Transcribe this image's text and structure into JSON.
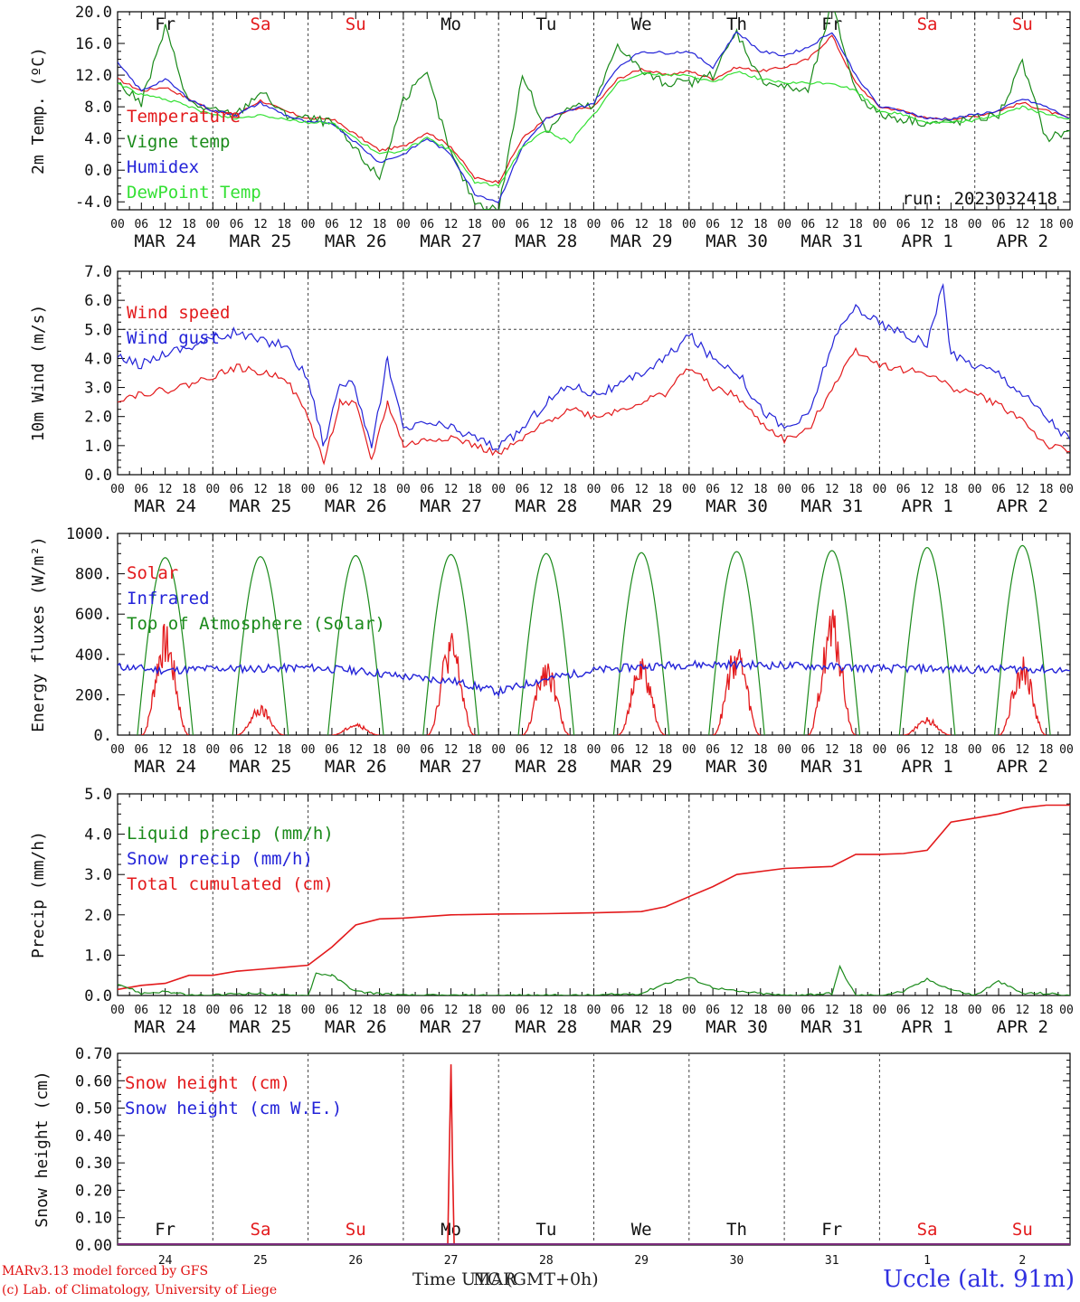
{
  "colors": {
    "red": "#e31a1c",
    "green": "#1a8a1a",
    "blue": "#2323d8",
    "lightgreen": "#33e033",
    "weekend": "#e31a1c",
    "weekday": "#111111"
  },
  "days": [
    "MAR 24",
    "MAR 25",
    "MAR 26",
    "MAR 27",
    "MAR 28",
    "MAR 29",
    "MAR 30",
    "MAR 31",
    "APR  1",
    "APR  2"
  ],
  "day_numbers": [
    "24",
    "25",
    "26",
    "27",
    "28",
    "29",
    "30",
    "31",
    "1",
    "2"
  ],
  "weekdays": [
    {
      "label": "Fr",
      "weekend": false
    },
    {
      "label": "Sa",
      "weekend": true
    },
    {
      "label": "Su",
      "weekend": true
    },
    {
      "label": "Mo",
      "weekend": false
    },
    {
      "label": "Tu",
      "weekend": false
    },
    {
      "label": "We",
      "weekend": false
    },
    {
      "label": "Th",
      "weekend": false
    },
    {
      "label": "Fr",
      "weekend": false
    },
    {
      "label": "Sa",
      "weekend": true
    },
    {
      "label": "Su",
      "weekend": true
    }
  ],
  "hour_ticks": [
    "00",
    "06",
    "12",
    "18"
  ],
  "hour_tick_end": "00",
  "footer": {
    "credit_line1": "MARv3.13 model forced by GFS",
    "credit_line2": "(c) Lab. of Climatology, University of Liege",
    "x_title": "Time UTC (GMT+0h)",
    "overlap_text": "MAR",
    "station": "Uccle (alt. 91m)"
  },
  "chart_data": [
    {
      "type": "line",
      "ylabel": "2m Temp. (ºC)",
      "ylim": [
        -5.0,
        20.0
      ],
      "yticks": [
        "-4.0",
        "0.0",
        "4.0",
        "8.0",
        "12.0",
        "16.0",
        "20.0"
      ],
      "ytick_values": [
        -4,
        0,
        4,
        8,
        12,
        16,
        20
      ],
      "annotation": "run: 2023032418",
      "legend": [
        "Temperature",
        "Vigne temp",
        "Humidex",
        "DewPoint Temp"
      ],
      "x_unit": "hours since MAR 24 00 UTC",
      "series": [
        {
          "name": "Temperature",
          "color": "red",
          "x": [
            0,
            6,
            12,
            18,
            24,
            30,
            36,
            42,
            48,
            54,
            60,
            66,
            72,
            78,
            84,
            90,
            96,
            102,
            108,
            114,
            120,
            126,
            132,
            138,
            144,
            150,
            156,
            162,
            168,
            174,
            180,
            186,
            192,
            198,
            204,
            210,
            216,
            222,
            228,
            234,
            240
          ],
          "y": [
            11.5,
            10.0,
            10.5,
            9.0,
            7.5,
            7.0,
            8.8,
            7.5,
            6.5,
            6.5,
            4.5,
            2.5,
            3.0,
            4.8,
            3.0,
            -1.0,
            -1.5,
            4.0,
            6.5,
            7.5,
            8.0,
            11.5,
            12.8,
            12.0,
            12.5,
            11.5,
            13.0,
            12.5,
            13.0,
            14.0,
            17.0,
            11.0,
            8.0,
            7.5,
            6.5,
            6.5,
            6.8,
            7.5,
            8.5,
            7.5,
            6.5
          ]
        },
        {
          "name": "Vigne temp",
          "color": "green",
          "x": [
            0,
            6,
            12,
            18,
            24,
            30,
            36,
            42,
            48,
            54,
            60,
            66,
            72,
            78,
            84,
            90,
            96,
            102,
            108,
            114,
            120,
            126,
            132,
            138,
            144,
            150,
            156,
            162,
            168,
            174,
            180,
            186,
            192,
            198,
            204,
            210,
            216,
            222,
            228,
            234,
            240
          ],
          "y": [
            11.0,
            8.5,
            18.0,
            8.5,
            7.5,
            7.0,
            10.0,
            7.0,
            6.5,
            6.0,
            2.5,
            -1.0,
            9.0,
            12.0,
            2.0,
            -4.0,
            -5.0,
            12.0,
            5.0,
            8.0,
            8.0,
            16.0,
            12.5,
            11.0,
            11.0,
            12.0,
            17.5,
            11.5,
            10.5,
            10.0,
            21.0,
            10.0,
            7.0,
            6.5,
            6.0,
            6.0,
            6.5,
            7.0,
            13.5,
            4.0,
            5.0
          ]
        },
        {
          "name": "Humidex",
          "color": "blue",
          "x": [
            0,
            6,
            12,
            18,
            24,
            30,
            36,
            42,
            48,
            54,
            60,
            66,
            72,
            78,
            84,
            90,
            96,
            102,
            108,
            114,
            120,
            126,
            132,
            138,
            144,
            150,
            156,
            162,
            168,
            174,
            180,
            186,
            192,
            198,
            204,
            210,
            216,
            222,
            228,
            234,
            240
          ],
          "y": [
            13.5,
            10.0,
            11.5,
            9.0,
            7.5,
            7.0,
            8.5,
            7.0,
            6.0,
            6.0,
            3.5,
            1.0,
            2.0,
            4.0,
            2.0,
            -3.0,
            -4.0,
            3.0,
            6.5,
            7.5,
            8.5,
            13.0,
            15.0,
            14.8,
            15.0,
            13.0,
            17.5,
            15.0,
            14.5,
            15.5,
            17.5,
            12.0,
            8.0,
            7.5,
            6.5,
            6.5,
            7.0,
            7.5,
            9.0,
            8.0,
            6.5
          ]
        },
        {
          "name": "DewPoint Temp",
          "color": "lightgreen",
          "x": [
            0,
            6,
            12,
            18,
            24,
            30,
            36,
            42,
            48,
            54,
            60,
            66,
            72,
            78,
            84,
            90,
            96,
            102,
            108,
            114,
            120,
            126,
            132,
            138,
            144,
            150,
            156,
            162,
            168,
            174,
            180,
            186,
            192,
            198,
            204,
            210,
            216,
            222,
            228,
            234,
            240
          ],
          "y": [
            11.0,
            9.5,
            9.0,
            8.0,
            7.0,
            6.5,
            7.0,
            6.5,
            6.0,
            6.0,
            4.0,
            2.0,
            2.5,
            4.0,
            2.5,
            -1.5,
            -2.0,
            3.0,
            5.0,
            3.5,
            7.0,
            11.0,
            12.3,
            12.0,
            12.0,
            11.0,
            12.5,
            11.5,
            11.0,
            11.0,
            11.0,
            10.0,
            7.5,
            7.0,
            6.0,
            6.0,
            6.3,
            7.0,
            8.0,
            7.0,
            6.5
          ]
        }
      ]
    },
    {
      "type": "line",
      "ylabel": "10m Wind (m/s)",
      "ylim": [
        0.0,
        7.0
      ],
      "yticks": [
        "0.0",
        "1.0",
        "2.0",
        "3.0",
        "4.0",
        "5.0",
        "6.0",
        "7.0"
      ],
      "ytick_values": [
        0,
        1,
        2,
        3,
        4,
        5,
        6,
        7
      ],
      "ref_line": 5.0,
      "legend": [
        "Wind speed",
        "Wind gust"
      ],
      "x_unit": "hours since MAR 24 00 UTC",
      "series": [
        {
          "name": "Wind speed",
          "color": "red",
          "x": [
            0,
            6,
            12,
            18,
            24,
            30,
            36,
            42,
            48,
            52,
            56,
            60,
            64,
            68,
            72,
            78,
            84,
            90,
            96,
            102,
            108,
            114,
            120,
            126,
            132,
            138,
            144,
            150,
            156,
            162,
            168,
            174,
            180,
            186,
            192,
            198,
            204,
            210,
            216,
            222,
            228,
            234,
            240
          ],
          "y": [
            2.6,
            2.8,
            2.9,
            3.1,
            3.4,
            3.7,
            3.5,
            3.4,
            2.0,
            0.4,
            2.5,
            2.4,
            0.5,
            2.5,
            1.0,
            1.2,
            1.3,
            1.0,
            0.7,
            1.2,
            1.8,
            2.3,
            2.0,
            2.2,
            2.5,
            2.8,
            3.7,
            3.0,
            2.7,
            1.8,
            1.2,
            1.5,
            3.0,
            4.3,
            3.8,
            3.6,
            3.5,
            3.0,
            2.8,
            2.4,
            1.9,
            1.0,
            0.8
          ]
        },
        {
          "name": "Wind gust",
          "color": "blue",
          "x": [
            0,
            6,
            12,
            18,
            24,
            30,
            36,
            42,
            48,
            52,
            56,
            60,
            64,
            68,
            72,
            78,
            84,
            90,
            96,
            102,
            108,
            114,
            120,
            126,
            132,
            138,
            144,
            150,
            156,
            162,
            168,
            174,
            180,
            186,
            192,
            198,
            204,
            208,
            210,
            216,
            222,
            228,
            234,
            240
          ],
          "y": [
            4.0,
            3.8,
            4.2,
            4.4,
            4.7,
            4.9,
            4.6,
            4.5,
            3.3,
            1.0,
            3.2,
            3.0,
            0.8,
            4.0,
            1.5,
            1.8,
            1.6,
            1.3,
            0.9,
            1.6,
            2.5,
            3.1,
            2.8,
            3.0,
            3.5,
            4.0,
            4.8,
            4.0,
            3.6,
            2.3,
            1.6,
            2.0,
            4.5,
            5.8,
            5.2,
            4.8,
            4.5,
            6.5,
            4.1,
            3.8,
            3.5,
            2.8,
            2.0,
            1.2
          ]
        }
      ]
    },
    {
      "type": "line",
      "ylabel": "Energy fluxes (W/m²)",
      "ylim": [
        0,
        1000
      ],
      "yticks": [
        "0.",
        "200.",
        "400.",
        "600.",
        "800.",
        "1000."
      ],
      "ytick_values": [
        0,
        200,
        400,
        600,
        800,
        1000
      ],
      "legend": [
        "Solar",
        "Infrared",
        "Top of Atmosphere (Solar)"
      ],
      "x_unit": "hours since MAR 24 00 UTC",
      "toa_peaks": [
        880,
        885,
        890,
        895,
        900,
        905,
        910,
        915,
        930,
        940
      ],
      "solar_peaks": [
        560,
        150,
        60,
        520,
        400,
        390,
        480,
        640,
        90,
        400
      ],
      "series": [
        {
          "name": "Infrared",
          "color": "blue",
          "x": [
            0,
            12,
            24,
            36,
            48,
            60,
            72,
            84,
            96,
            108,
            120,
            132,
            144,
            156,
            168,
            180,
            192,
            204,
            216,
            228,
            240
          ],
          "y": [
            340,
            320,
            330,
            330,
            335,
            320,
            290,
            270,
            215,
            280,
            320,
            340,
            350,
            350,
            345,
            340,
            330,
            330,
            325,
            330,
            320
          ]
        }
      ]
    },
    {
      "type": "line",
      "ylabel": "Precip (mm/h)",
      "ylim": [
        0.0,
        5.0
      ],
      "yticks": [
        "0.0",
        "1.0",
        "2.0",
        "3.0",
        "4.0",
        "5.0"
      ],
      "ytick_values": [
        0,
        1,
        2,
        3,
        4,
        5
      ],
      "legend": [
        "Liquid precip (mm/h)",
        "Snow precip (mm/h)",
        "Total cumulated (cm)"
      ],
      "x_unit": "hours since MAR 24 00 UTC",
      "series": [
        {
          "name": "Total cumulated (cm)",
          "color": "red",
          "x": [
            0,
            6,
            12,
            18,
            24,
            30,
            36,
            42,
            48,
            54,
            60,
            66,
            72,
            84,
            96,
            108,
            120,
            132,
            138,
            144,
            150,
            156,
            168,
            180,
            186,
            192,
            198,
            204,
            210,
            216,
            222,
            228,
            234,
            240
          ],
          "y": [
            0.15,
            0.25,
            0.3,
            0.5,
            0.5,
            0.6,
            0.65,
            0.7,
            0.75,
            1.2,
            1.75,
            1.9,
            1.92,
            2.0,
            2.02,
            2.03,
            2.05,
            2.08,
            2.2,
            2.45,
            2.7,
            3.0,
            3.15,
            3.2,
            3.5,
            3.5,
            3.52,
            3.6,
            4.3,
            4.4,
            4.5,
            4.65,
            4.72,
            4.72
          ]
        },
        {
          "name": "Liquid precip (mm/h)",
          "color": "green",
          "x": [
            0,
            6,
            12,
            18,
            24,
            30,
            36,
            42,
            48,
            50,
            54,
            60,
            66,
            72,
            84,
            96,
            108,
            120,
            132,
            138,
            144,
            150,
            156,
            168,
            180,
            182,
            186,
            192,
            198,
            204,
            210,
            216,
            222,
            228,
            234,
            240
          ],
          "y": [
            0.3,
            0.05,
            0.1,
            0.0,
            0.0,
            0.05,
            0.05,
            0.0,
            0.0,
            0.55,
            0.5,
            0.1,
            0.05,
            0.0,
            0.0,
            0.0,
            0.0,
            0.0,
            0.05,
            0.3,
            0.45,
            0.2,
            0.1,
            0.0,
            0.05,
            0.7,
            0.0,
            0.0,
            0.1,
            0.4,
            0.15,
            0.0,
            0.35,
            0.05,
            0.05,
            0.0
          ]
        }
      ]
    },
    {
      "type": "line",
      "ylabel": "Snow height (cm)",
      "ylim": [
        0.0,
        0.7
      ],
      "yticks": [
        "0.00",
        "0.10",
        "0.20",
        "0.30",
        "0.40",
        "0.50",
        "0.60",
        "0.70"
      ],
      "ytick_values": [
        0,
        0.1,
        0.2,
        0.3,
        0.4,
        0.5,
        0.6,
        0.7
      ],
      "legend": [
        "Snow height (cm)",
        "Snow height (cm W.E.)"
      ],
      "x_unit": "hours since MAR 24 00 UTC",
      "series": [
        {
          "name": "Snow height (cm)",
          "color": "red",
          "x": [
            0,
            83.2,
            83.6,
            84.0,
            84.4,
            84.8,
            240
          ],
          "y": [
            0,
            0,
            0.35,
            0.66,
            0.3,
            0,
            0
          ]
        },
        {
          "name": "Snow height (cm W.E.)",
          "color": "blue",
          "x": [
            0,
            240
          ],
          "y": [
            0,
            0
          ]
        }
      ]
    }
  ]
}
